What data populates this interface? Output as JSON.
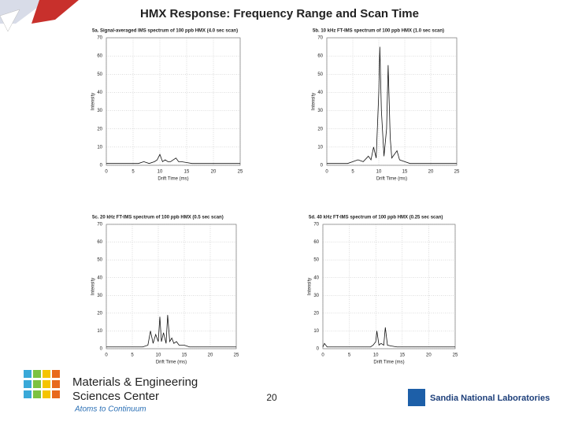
{
  "title": "HMX Response: Frequency Range and Scan Time",
  "chart_data": [
    {
      "type": "line",
      "title": "5a. Signal-averaged IMS spectrum of 100 ppb HMX (4.0 sec scan)",
      "x_label": "Drift Time (ms)",
      "y_label": "Intensity",
      "x": [
        0,
        2,
        4,
        6,
        7,
        8,
        9,
        9.5,
        10,
        10.5,
        11,
        11.5,
        12,
        12.5,
        13,
        13.5,
        14,
        15,
        16,
        18,
        20,
        22,
        24,
        25
      ],
      "series": [
        {
          "name": "5a",
          "color": "#111111",
          "values": [
            1,
            1,
            1,
            1,
            2,
            1,
            2,
            3,
            6,
            2,
            3,
            2,
            2,
            3,
            4,
            2,
            2,
            1.5,
            1,
            1,
            1,
            1,
            1,
            1
          ]
        }
      ],
      "xlim": [
        0,
        25
      ],
      "ylim": [
        0,
        70
      ],
      "xticks": [
        0,
        5,
        10,
        15,
        20,
        25
      ],
      "yticks": [
        0,
        10,
        20,
        30,
        40,
        50,
        60,
        70
      ],
      "grid": true
    },
    {
      "type": "line",
      "title": "5b. 10 kHz FT-IMS spectrum of 100 ppb HMX (1.0 sec scan)",
      "x_label": "Drift Time (ms)",
      "y_label": "Intensity",
      "x": [
        0,
        2,
        4,
        5,
        6,
        7,
        8,
        8.5,
        9,
        9.5,
        10,
        10.2,
        10.5,
        11,
        11.5,
        11.8,
        12.2,
        12.5,
        13,
        13.5,
        14,
        15,
        16,
        18,
        20,
        22,
        25
      ],
      "series": [
        {
          "name": "5b",
          "color": "#111111",
          "values": [
            1,
            1,
            1,
            2,
            3,
            2,
            5,
            3,
            10,
            4,
            40,
            65,
            30,
            5,
            20,
            55,
            15,
            4,
            6,
            8,
            3,
            2,
            1,
            1,
            1,
            1,
            1
          ]
        }
      ],
      "xlim": [
        0,
        25
      ],
      "ylim": [
        0,
        70
      ],
      "xticks": [
        0,
        5,
        10,
        15,
        20,
        25
      ],
      "yticks": [
        0,
        10,
        20,
        30,
        40,
        50,
        60,
        70
      ],
      "grid": true
    },
    {
      "type": "line",
      "title": "5c. 20 kHz FT-IMS spectrum of 100 ppb HMX (0.5 sec scan)",
      "x_label": "Drift Time (ms)",
      "y_label": "Intensity",
      "x": [
        0,
        2,
        4,
        6,
        7,
        8,
        8.5,
        9,
        9.5,
        10,
        10.3,
        10.6,
        11,
        11.5,
        11.8,
        12.2,
        12.6,
        13,
        13.5,
        14,
        15,
        16,
        18,
        20,
        22,
        25
      ],
      "series": [
        {
          "name": "5c",
          "color": "#111111",
          "values": [
            1,
            1,
            1,
            1,
            1,
            2,
            10,
            3,
            8,
            4,
            18,
            4,
            9,
            3,
            19,
            4,
            6,
            3,
            4,
            2,
            2,
            1,
            1,
            1,
            1,
            1
          ]
        }
      ],
      "xlim": [
        0,
        25
      ],
      "ylim": [
        0,
        70
      ],
      "xticks": [
        0,
        5,
        10,
        15,
        20,
        25
      ],
      "yticks": [
        0,
        10,
        20,
        30,
        40,
        50,
        60,
        70
      ],
      "grid": true
    },
    {
      "type": "line",
      "title": "5d. 40 kHz FT-IMS spectrum of 100 ppb HMX (0.25 sec scan)",
      "x_label": "Drift Time (ms)",
      "y_label": "Intensity",
      "x": [
        0,
        0.3,
        0.8,
        2,
        4,
        6,
        8,
        9,
        9.5,
        10,
        10.2,
        10.6,
        11,
        11.5,
        11.8,
        12.2,
        13,
        14,
        16,
        18,
        20,
        22,
        25
      ],
      "series": [
        {
          "name": "5d",
          "color": "#111111",
          "values": [
            1,
            3,
            1,
            1,
            1,
            1,
            1,
            1,
            2,
            4,
            10,
            2,
            3,
            2,
            12,
            2,
            1.5,
            1,
            1,
            1,
            1,
            1,
            1
          ]
        }
      ],
      "xlim": [
        0,
        25
      ],
      "ylim": [
        0,
        70
      ],
      "xticks": [
        0,
        5,
        10,
        15,
        20,
        25
      ],
      "yticks": [
        0,
        10,
        20,
        30,
        40,
        50,
        60,
        70
      ],
      "grid": true
    }
  ],
  "footer": {
    "org_line1": "Materials & Engineering",
    "org_line2": "Sciences Center",
    "tagline": "Atoms to Continuum",
    "page": "20",
    "lab": "Sandia National Laboratories"
  }
}
